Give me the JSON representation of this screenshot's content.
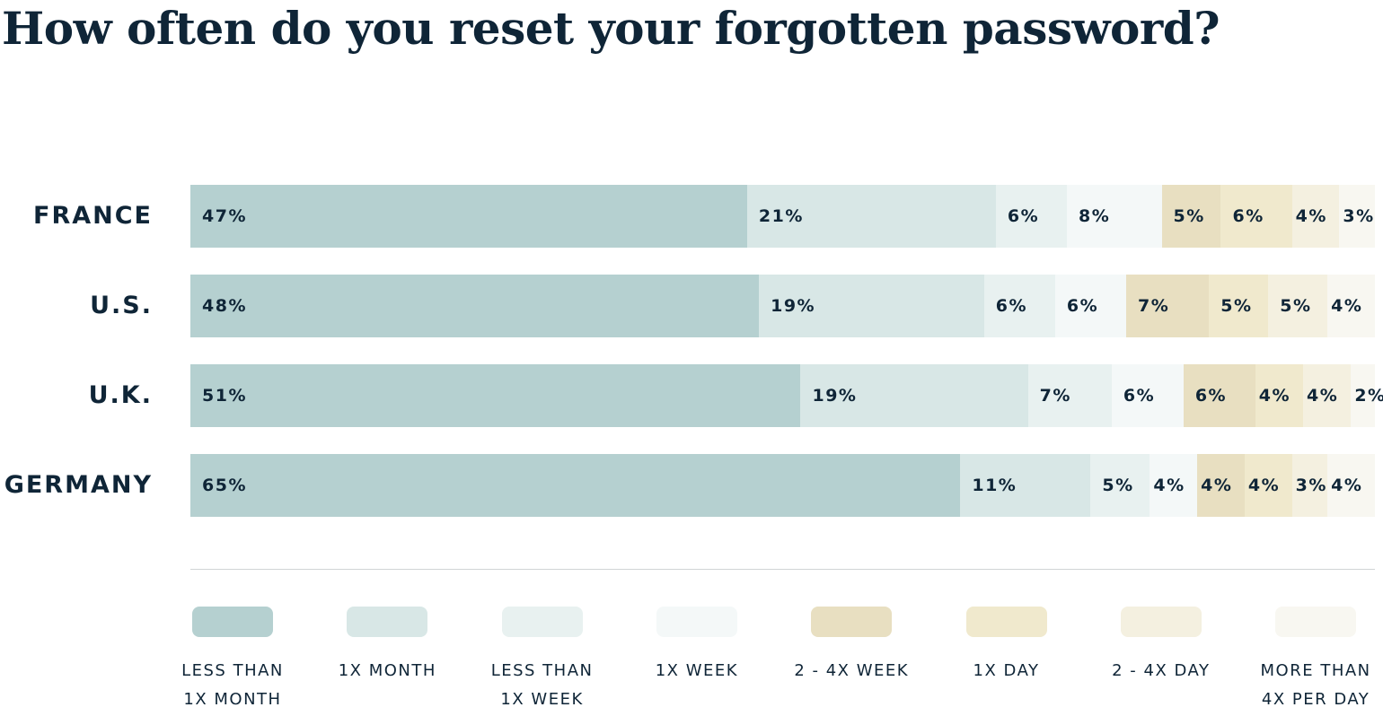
{
  "chart_data": {
    "type": "bar",
    "orientation": "horizontal",
    "stacked": true,
    "title": "How often do you reset your forgotten password?",
    "categories": [
      "FRANCE",
      "U.S.",
      "U.K.",
      "GERMANY"
    ],
    "series": [
      {
        "name": "LESS THAN 1X MONTH",
        "color": "#b5d0d0",
        "values": [
          47,
          48,
          51,
          65
        ]
      },
      {
        "name": "1X MONTH",
        "color": "#d8e7e6",
        "values": [
          21,
          19,
          19,
          11
        ]
      },
      {
        "name": "LESS THAN 1X WEEK",
        "color": "#e8f1f0",
        "values": [
          6,
          6,
          7,
          5
        ]
      },
      {
        "name": "1X WEEK",
        "color": "#f4f8f8",
        "values": [
          8,
          6,
          6,
          4
        ]
      },
      {
        "name": "2 - 4X WEEK",
        "color": "#e8dfc1",
        "values": [
          5,
          7,
          6,
          4
        ]
      },
      {
        "name": "1X DAY",
        "color": "#f0e9cd",
        "values": [
          6,
          5,
          4,
          4
        ]
      },
      {
        "name": "2 - 4X DAY",
        "color": "#f4f0e0",
        "values": [
          4,
          5,
          4,
          3
        ]
      },
      {
        "name": "MORE THAN 4X PER DAY",
        "color": "#f8f7f1",
        "values": [
          3,
          4,
          2,
          4
        ]
      }
    ],
    "value_suffix": "%",
    "legend_position": "bottom",
    "legend_labels": [
      "LESS THAN\n1X MONTH",
      "1X MONTH",
      "LESS THAN\n1X WEEK",
      "1X WEEK",
      "2 - 4X WEEK",
      "1X DAY",
      "2 - 4X DAY",
      "MORE THAN\n4X PER DAY"
    ],
    "grid": false
  }
}
